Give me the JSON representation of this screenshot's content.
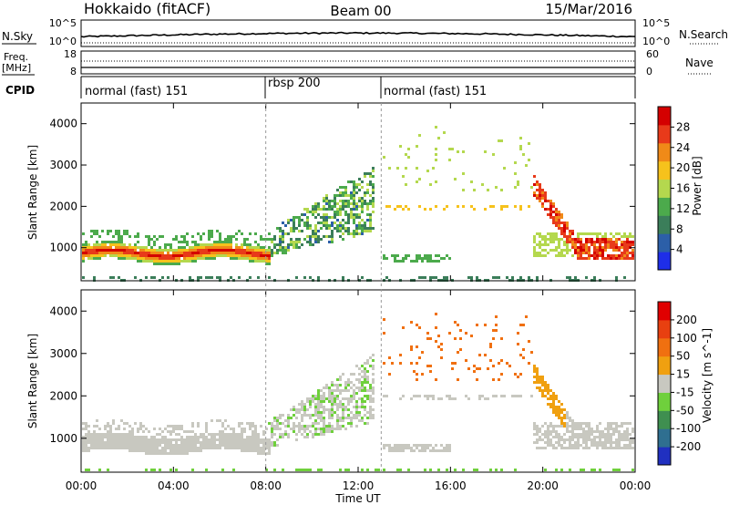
{
  "header": {
    "station": "Hokkaido (fitACF)",
    "beam": "Beam 00",
    "date": "15/Mar/2016"
  },
  "top_panels": {
    "nsky": {
      "label": "N.Sky",
      "right_label": "N.Search",
      "left_ticks": [
        "10^5",
        "10^0"
      ],
      "right_ticks": [
        "10^5",
        "10^0"
      ]
    },
    "freq": {
      "label_line1": "Freq.",
      "label_line2": "[MHz]",
      "left_ticks": [
        "18",
        "8"
      ],
      "right_label": "Nave",
      "right_ticks": [
        "60",
        "0"
      ]
    },
    "cpid": {
      "label": "CPID",
      "segments": [
        {
          "label": "normal (fast) 151",
          "start_h": 0,
          "end_h": 8
        },
        {
          "label": "rbsp 200",
          "start_h": 8,
          "end_h": 13
        },
        {
          "label": "normal (fast) 151",
          "start_h": 13,
          "end_h": 24
        }
      ]
    }
  },
  "chart_data": [
    {
      "type": "heatmap",
      "title": "Power",
      "xlabel": "Time UT",
      "ylabel": "Slant Range [km]",
      "x_ticks": [
        "00:00",
        "04:00",
        "08:00",
        "12:00",
        "16:00",
        "20:00",
        "00:00"
      ],
      "xlim_hours": [
        0,
        24
      ],
      "ylim": [
        200,
        4500
      ],
      "y_ticks": [
        1000,
        2000,
        3000,
        4000
      ],
      "colorbar": {
        "label": "Power [dB]",
        "ticks": [
          4,
          8,
          12,
          16,
          20,
          24,
          28
        ],
        "range": [
          0,
          30
        ],
        "colors": [
          "#1e2ee8",
          "#2c5fa8",
          "#3b7e5a",
          "#4caa4c",
          "#b4d84e",
          "#f6c21c",
          "#f08a18",
          "#e83a1a",
          "#d40000"
        ]
      },
      "features": [
        {
          "name": "main band",
          "time_h": [
            0,
            8
          ],
          "range_km": [
            700,
            1100
          ],
          "level_db": 28
        },
        {
          "name": "rising echoes",
          "time_h": [
            8,
            12.5
          ],
          "range_km": [
            1000,
            3000
          ],
          "level_db": 10
        },
        {
          "name": "far echoes",
          "time_h": [
            19.5,
            24
          ],
          "range_km": [
            800,
            2800
          ],
          "level_db": 22
        }
      ]
    },
    {
      "type": "heatmap",
      "title": "Velocity",
      "xlabel": "Time UT",
      "ylabel": "Slant Range [km]",
      "x_ticks": [
        "00:00",
        "04:00",
        "08:00",
        "12:00",
        "16:00",
        "20:00",
        "00:00"
      ],
      "xlim_hours": [
        0,
        24
      ],
      "ylim": [
        200,
        4500
      ],
      "y_ticks": [
        1000,
        2000,
        3000,
        4000
      ],
      "colorbar": {
        "label": "Velocity [m s^-1]",
        "ticks": [
          "200",
          "100",
          "50",
          "15",
          "-15",
          "-50",
          "-100",
          "-200"
        ],
        "range": [
          -250,
          250
        ],
        "colors": [
          "#2030c0",
          "#2f6f90",
          "#3f8f50",
          "#6fd03c",
          "#c8c8c0",
          "#f0a010",
          "#f07010",
          "#e84010",
          "#e00000"
        ]
      },
      "features": [
        {
          "name": "ground scatter band",
          "time_h": [
            0,
            8
          ],
          "range_km": [
            700,
            1100
          ],
          "velocity": 0
        },
        {
          "name": "mixed flow",
          "time_h": [
            8,
            12.5
          ],
          "range_km": [
            1000,
            3000
          ],
          "velocity": -40
        }
      ]
    }
  ]
}
